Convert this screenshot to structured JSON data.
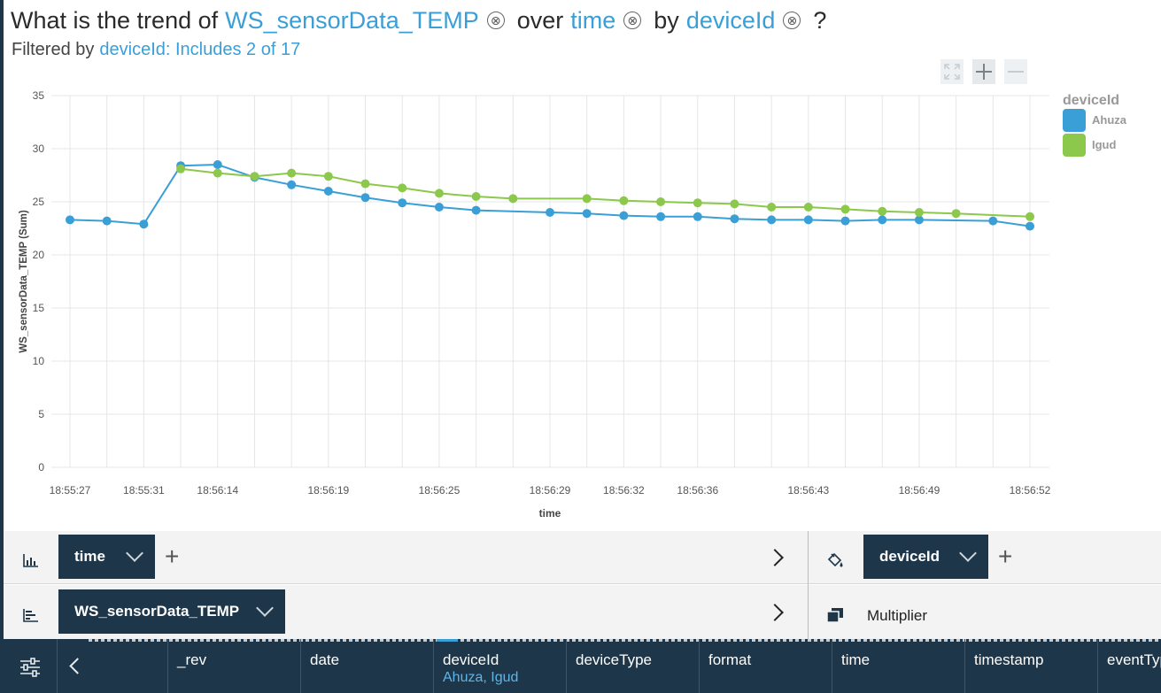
{
  "question": {
    "prefix": "What is the trend of",
    "measure": "WS_sensorData_TEMP",
    "over": "over",
    "axis": "time",
    "by": "by",
    "group": "deviceId",
    "suffix": "?",
    "remove_glyph": "⊗"
  },
  "filter": {
    "label": "Filtered by",
    "value": "deviceId: Includes 2 of 17"
  },
  "zoom": {
    "fit_icon": "fit-screen-icon",
    "zoom_in_icon": "plus-icon",
    "zoom_out_icon": "minus-icon"
  },
  "chart_data": {
    "type": "line",
    "title": "",
    "xlabel": "time",
    "ylabel": "WS_sensorData_TEMP (Sum)",
    "ylim": [
      0,
      35
    ],
    "yticks": [
      0,
      5,
      10,
      15,
      20,
      25,
      30,
      35
    ],
    "grid": true,
    "legend_title": "deviceId",
    "legend_position": "top-right",
    "x": [
      "18:55:27",
      "18:55:29",
      "18:55:31",
      "18:55:32",
      "18:56:14",
      "18:56:16",
      "18:56:17",
      "18:56:19",
      "18:56:21",
      "18:56:23",
      "18:56:25",
      "18:56:27",
      "18:56:28",
      "18:56:29",
      "18:56:31",
      "18:56:32",
      "18:56:34",
      "18:56:36",
      "18:56:38",
      "18:56:43",
      "18:56:44",
      "18:56:46",
      "18:56:48",
      "18:56:49",
      "18:56:50",
      "18:56:51",
      "18:56:52"
    ],
    "xtick_labels": [
      "18:55:27",
      "18:55:31",
      "18:56:14",
      "18:56:19",
      "18:56:25",
      "18:56:29",
      "18:56:32",
      "18:56:36",
      "18:56:43",
      "18:56:49",
      "18:56:52"
    ],
    "xtick_indices": [
      0,
      2,
      4,
      7,
      10,
      13,
      15,
      17,
      20,
      23,
      26
    ],
    "series": [
      {
        "name": "Ahuza",
        "color": "#3a9fd6",
        "values": [
          23.3,
          23.2,
          22.9,
          28.4,
          28.5,
          27.3,
          26.6,
          26.0,
          25.4,
          24.9,
          24.5,
          24.2,
          null,
          24.0,
          23.9,
          23.7,
          23.6,
          23.6,
          23.4,
          23.3,
          23.3,
          23.2,
          23.3,
          23.3,
          null,
          23.2,
          22.7
        ]
      },
      {
        "name": "Igud",
        "color": "#8cc84b",
        "values": [
          null,
          null,
          null,
          28.1,
          27.7,
          27.4,
          27.7,
          27.4,
          26.7,
          26.3,
          25.8,
          25.5,
          25.3,
          null,
          25.3,
          25.1,
          25.0,
          24.9,
          24.8,
          24.5,
          24.5,
          24.3,
          24.1,
          24.0,
          23.9,
          null,
          23.6
        ]
      }
    ]
  },
  "shelf": {
    "xaxis_icon": "bar-chart-icon",
    "xaxis_pill": "time",
    "yaxis_icon": "horizontal-bar-icon",
    "yaxis_pill": "WS_sensorData_TEMP",
    "color_icon": "paint-bucket-icon",
    "color_pill": "deviceId",
    "multiplier_icon": "multiplier-icon",
    "multiplier_label": "Multiplier",
    "add_glyph": "+"
  },
  "datatab": {
    "settings_icon": "sliders-icon",
    "back_icon": "chevron-left-icon",
    "columns": [
      {
        "name": "_rev",
        "sub": ""
      },
      {
        "name": "date",
        "sub": ""
      },
      {
        "name": "deviceId",
        "sub": "Ahuza, Igud"
      },
      {
        "name": "deviceType",
        "sub": ""
      },
      {
        "name": "format",
        "sub": ""
      },
      {
        "name": "time",
        "sub": ""
      },
      {
        "name": "timestamp",
        "sub": ""
      },
      {
        "name": "eventType",
        "sub": ""
      }
    ]
  }
}
